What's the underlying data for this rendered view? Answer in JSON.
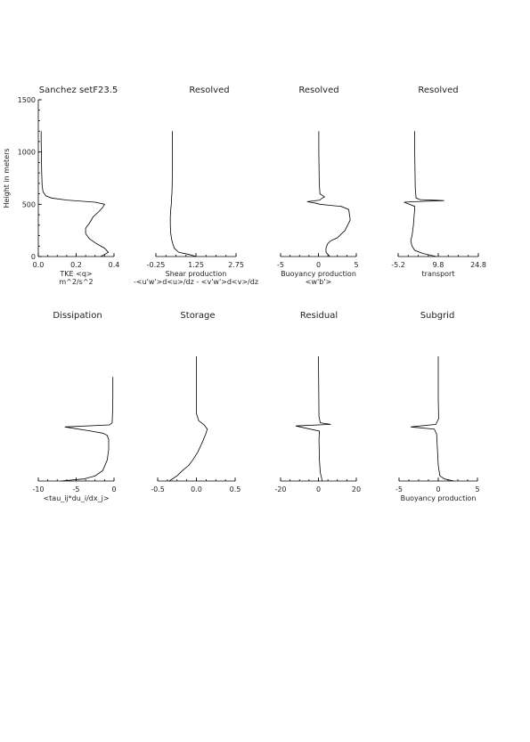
{
  "chart_data": [
    {
      "type": "line",
      "title": "Sanchez setF23.5",
      "xticks": [
        "0.0",
        "0.2",
        "0.4"
      ],
      "xlabel": [
        "TKE <q>",
        "m^2/s^2"
      ],
      "ylabel": "Height in meters",
      "yticks": [
        "0",
        "500",
        "1000",
        "1500"
      ],
      "xlim": [
        0,
        0.4
      ],
      "ylim": [
        0,
        1500
      ],
      "series": [
        {
          "x": [
            0.33,
            0.37,
            0.35,
            0.31,
            0.27,
            0.25,
            0.25,
            0.27,
            0.29,
            0.32,
            0.34,
            0.35,
            0.3,
            0.15,
            0.07,
            0.04,
            0.025,
            0.02,
            0.018,
            0.016,
            0.015,
            0.015
          ],
          "y": [
            0,
            40,
            80,
            120,
            170,
            220,
            270,
            320,
            380,
            430,
            470,
            500,
            520,
            540,
            560,
            580,
            620,
            680,
            800,
            1000,
            1100,
            1200
          ]
        }
      ]
    },
    {
      "type": "line",
      "title": "Resolved",
      "xticks": [
        "-0.25",
        "1.25",
        "2.75"
      ],
      "xlabel": [
        "Shear production",
        "-<u'w'>d<u>/dz - <v'w'>d<v>/dz"
      ],
      "xlim": [
        -0.75,
        2.75
      ],
      "ylim": [
        0,
        1500
      ],
      "series": [
        {
          "x": [
            1.0,
            0.7,
            0.25,
            0.05,
            -0.05,
            -0.1,
            -0.12,
            -0.12,
            -0.1,
            -0.07,
            -0.07,
            -0.05,
            -0.04,
            -0.035,
            -0.03,
            -0.03
          ],
          "y": [
            0,
            20,
            40,
            80,
            150,
            220,
            300,
            380,
            450,
            520,
            560,
            600,
            700,
            800,
            1000,
            1200
          ]
        }
      ]
    },
    {
      "type": "line",
      "title": "Resolved",
      "xticks": [
        "-5",
        "0",
        "5"
      ],
      "xlabel": [
        "Buoyancy production",
        "<w'b'>"
      ],
      "xlim": [
        -5,
        5
      ],
      "ylim": [
        0,
        1500
      ],
      "series": [
        {
          "x": [
            1.5,
            1.0,
            1.0,
            1.2,
            1.6,
            2.5,
            3.5,
            4.2,
            4.0,
            3.0,
            1.5,
            0.2,
            -0.3,
            -1.5,
            0.2,
            0.4,
            0.8,
            0.2,
            0.1,
            0.05,
            0.05
          ],
          "y": [
            0,
            40,
            80,
            120,
            150,
            180,
            250,
            350,
            450,
            480,
            490,
            500,
            510,
            525,
            540,
            555,
            570,
            600,
            700,
            1000,
            1200
          ]
        }
      ]
    },
    {
      "type": "line",
      "title": "Resolved",
      "xticks": [
        "-5.2",
        "9.8",
        "24.8"
      ],
      "xlabel": [
        "transport"
      ],
      "xlim": [
        -5.2,
        24.8
      ],
      "ylim": [
        0,
        1500
      ],
      "series": [
        {
          "x": [
            9.0,
            4.0,
            1.0,
            0.0,
            -0.5,
            0.0,
            0.5,
            0.8,
            1.0,
            1.0,
            -3.0,
            1.0,
            12.0,
            3.0,
            1.5,
            1.2,
            1.0,
            1.0
          ],
          "y": [
            0,
            30,
            60,
            100,
            150,
            200,
            300,
            400,
            450,
            480,
            520,
            525,
            535,
            545,
            560,
            650,
            1000,
            1200
          ]
        }
      ]
    },
    {
      "type": "line",
      "title": "Dissipation",
      "xticks": [
        "-10",
        "-5",
        "0"
      ],
      "xlabel": [
        "<tau_ij*du_i/dx_j>"
      ],
      "xlim": [
        -10,
        0
      ],
      "ylim": [
        0,
        1500
      ],
      "series": [
        {
          "x": [
            -7.0,
            -4.0,
            -2.5,
            -1.5,
            -0.9,
            -0.7,
            -0.7,
            -0.9,
            -1.5,
            -3.0,
            -6.5,
            -0.6,
            -0.25,
            -0.2,
            -0.15,
            -0.15
          ],
          "y": [
            0,
            20,
            50,
            100,
            200,
            300,
            400,
            440,
            460,
            480,
            520,
            540,
            560,
            650,
            800,
            1000
          ]
        }
      ]
    },
    {
      "type": "line",
      "title": "Storage",
      "xticks": [
        "-0.5",
        "0.0",
        "0.5"
      ],
      "xlabel": [],
      "xlim": [
        -0.5,
        0.5
      ],
      "ylim": [
        0,
        1500
      ],
      "series": [
        {
          "x": [
            -0.35,
            -0.25,
            -0.18,
            -0.1,
            -0.05,
            0.02,
            0.08,
            0.12,
            0.14,
            0.1,
            0.03,
            0.0,
            0.0,
            0.0,
            0.0
          ],
          "y": [
            0,
            50,
            100,
            150,
            200,
            280,
            380,
            450,
            500,
            540,
            580,
            650,
            800,
            1000,
            1200
          ]
        }
      ]
    },
    {
      "type": "line",
      "title": "Residual",
      "xticks": [
        "-20",
        "0",
        "20"
      ],
      "xlabel": [],
      "xlim": [
        -20,
        20
      ],
      "ylim": [
        0,
        1500
      ],
      "series": [
        {
          "x": [
            2,
            1.5,
            1,
            0.5,
            0.3,
            0.5,
            -12,
            6.5,
            1,
            0.3,
            0.2,
            0.1,
            0
          ],
          "y": [
            0,
            40,
            80,
            200,
            400,
            480,
            530,
            545,
            560,
            620,
            800,
            1000,
            1200
          ]
        }
      ]
    },
    {
      "type": "line",
      "title": "Subgrid",
      "xticks": [
        "-5",
        "0",
        "5"
      ],
      "xlabel": [
        "Buoyancy production"
      ],
      "xlim": [
        -5,
        5
      ],
      "ylim": [
        0,
        1500
      ],
      "series": [
        {
          "x": [
            2.0,
            0.8,
            0.2,
            0.0,
            -0.1,
            -0.2,
            -0.5,
            -3.5,
            -0.3,
            0.05,
            0.0,
            0.0
          ],
          "y": [
            0,
            20,
            50,
            150,
            300,
            450,
            500,
            520,
            545,
            600,
            800,
            1200
          ]
        }
      ]
    }
  ]
}
